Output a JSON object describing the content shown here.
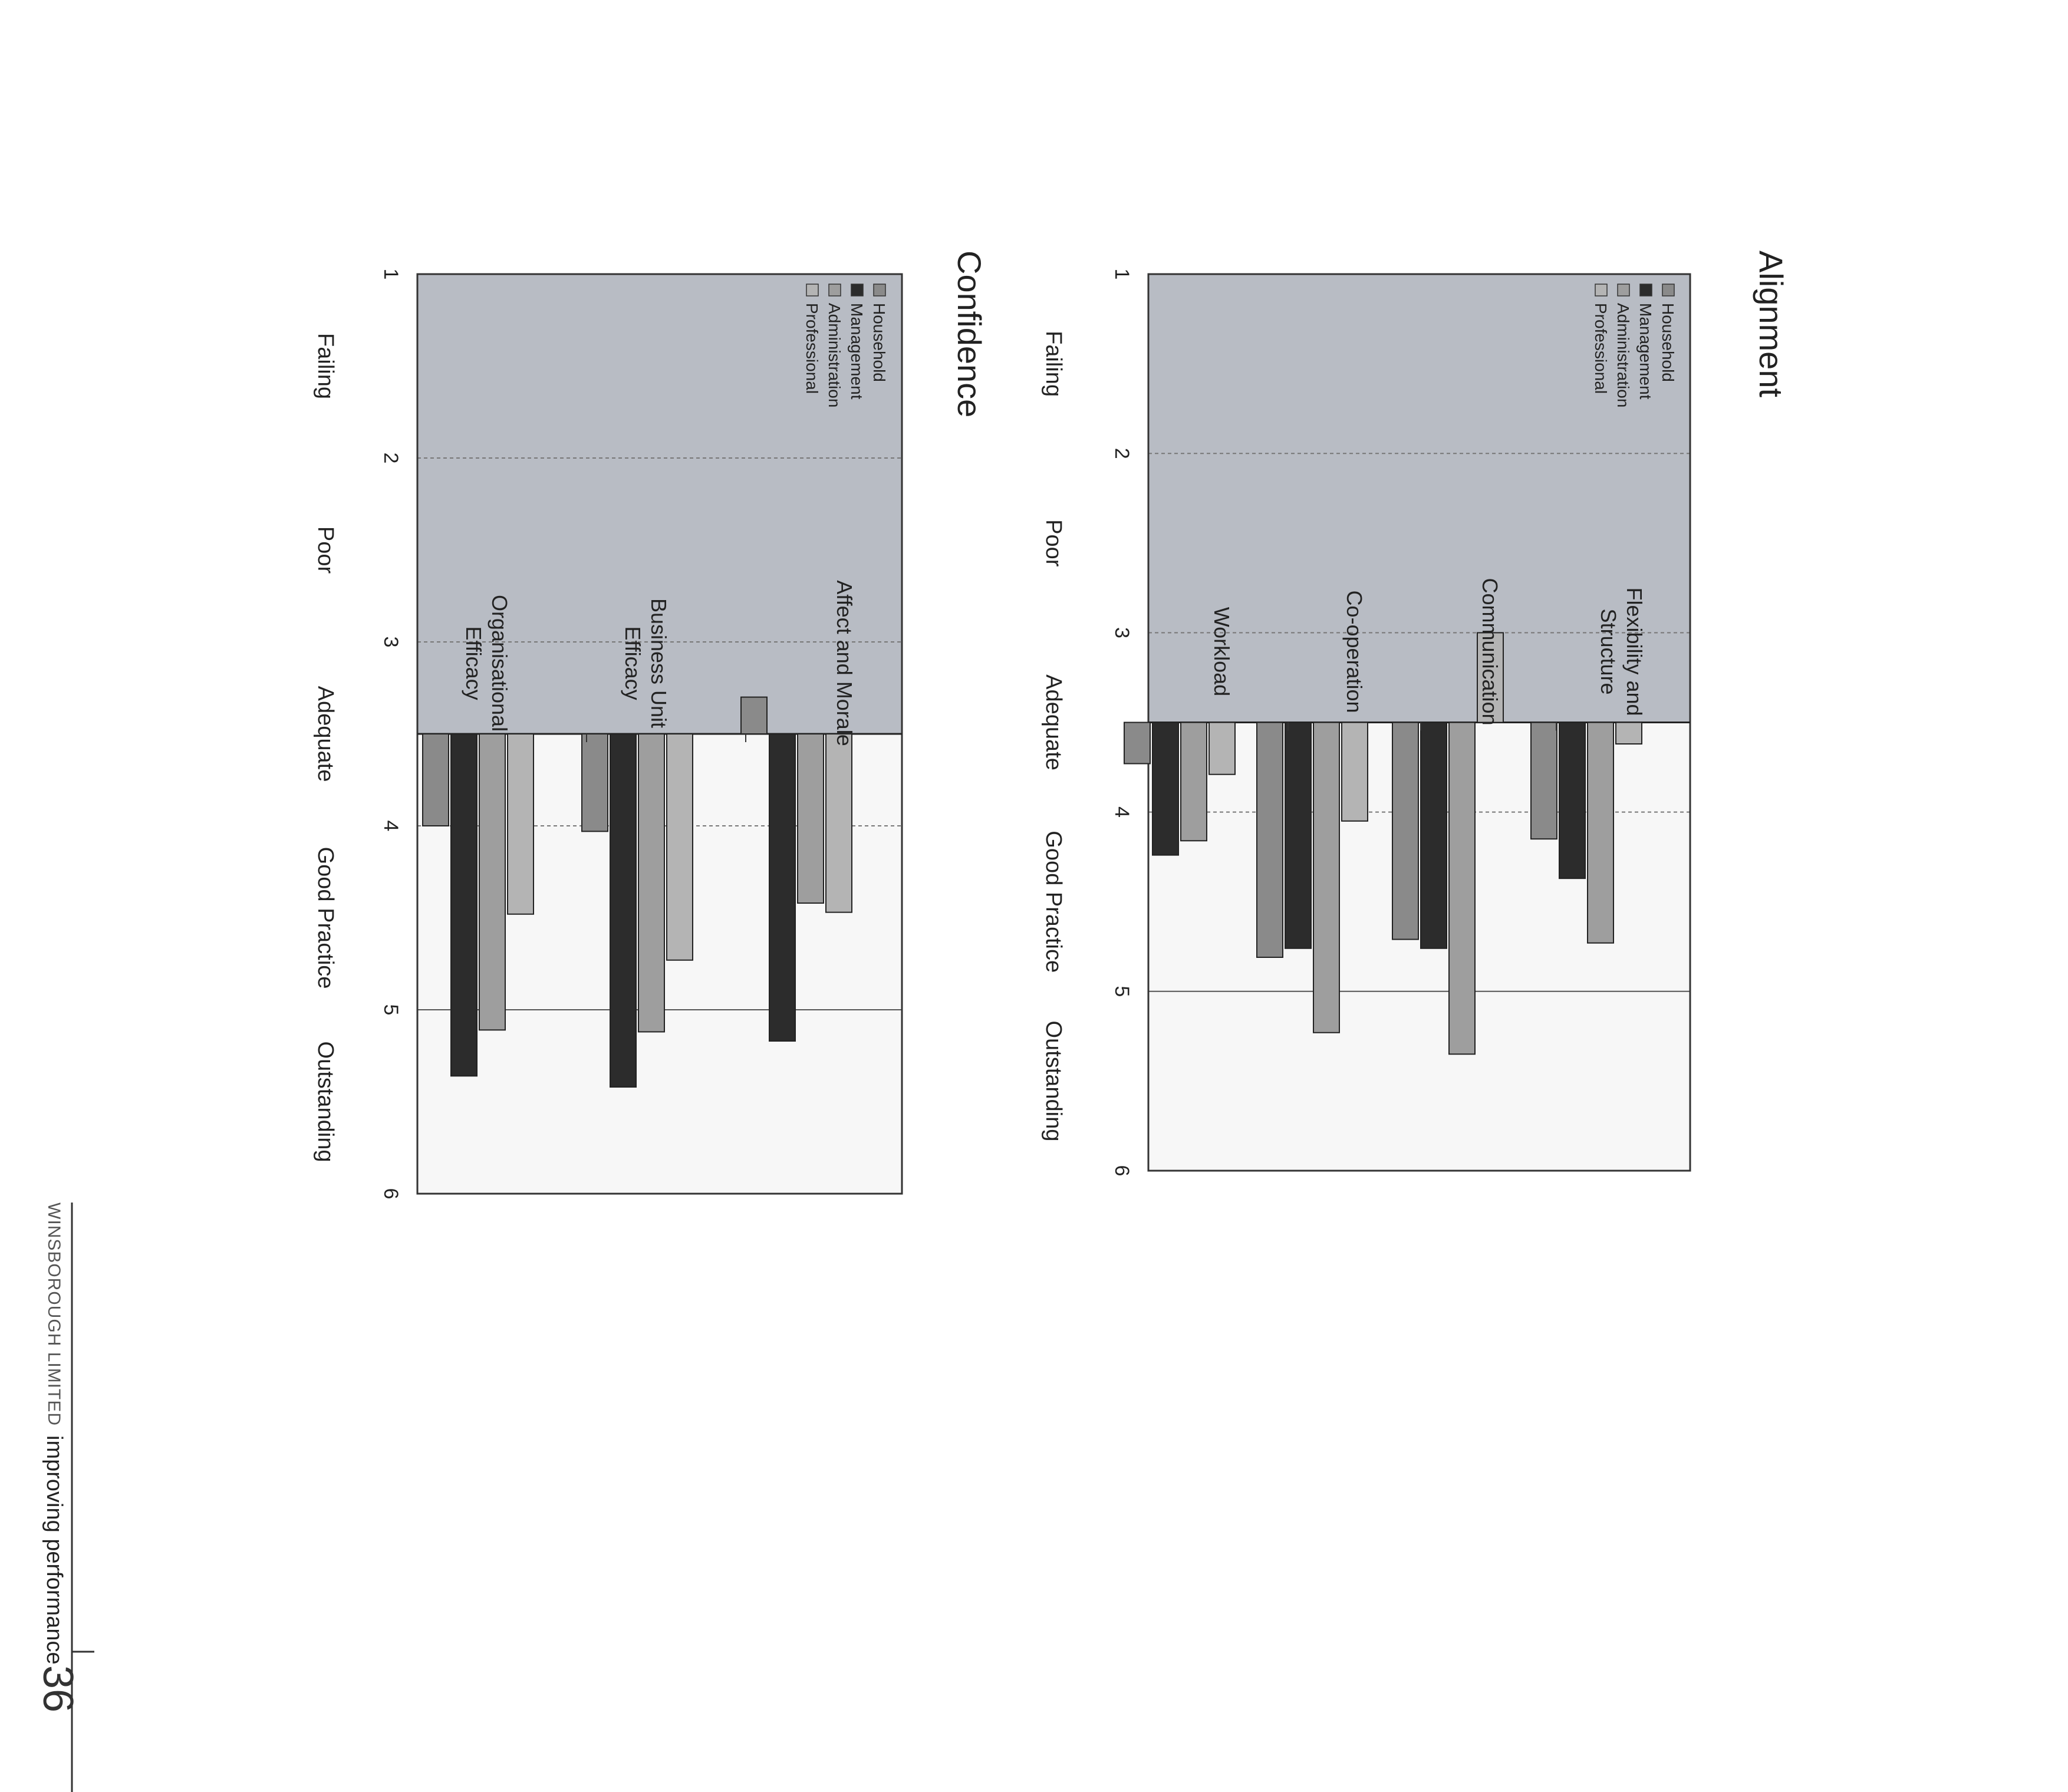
{
  "page": {
    "number": "36",
    "brand": "WINSBOROUGH LIMITED",
    "tagline": "improving performance"
  },
  "legend_colors": {
    "Household": "#8a8a8a",
    "Management": "#2c2c2c",
    "Administration": "#9e9e9e",
    "Professional": "#b4b4b4"
  },
  "bg_colors": {
    "upper": "#b8bcc4",
    "lower": "#f7f7f7"
  },
  "chart_data": [
    {
      "type": "bar",
      "orientation": "horizontal",
      "title": "Alignment",
      "categories": [
        "Flexibility and Structure",
        "Communication",
        "Co-operation",
        "Workload"
      ],
      "category_lines": [
        [
          "Flexibility and",
          "Structure"
        ],
        [
          "Communication"
        ],
        [
          "Co-operation"
        ],
        [
          "Workload"
        ]
      ],
      "series": [
        {
          "name": "Household",
          "values": [
            4.15,
            4.71,
            4.81,
            3.73
          ]
        },
        {
          "name": "Management",
          "values": [
            4.37,
            4.76,
            4.76,
            4.24
          ]
        },
        {
          "name": "Administration",
          "values": [
            4.73,
            5.35,
            5.23,
            4.16
          ]
        },
        {
          "name": "Professional",
          "values": [
            3.62,
            3.0,
            4.05,
            3.79
          ]
        }
      ],
      "baseline": 3.5,
      "xlim": [
        1,
        6
      ],
      "ticks": [
        "1",
        "2",
        "3",
        "4",
        "5",
        "6"
      ],
      "scale_labels": [
        "Failing",
        "Poor",
        "Adequate",
        "Good Practice",
        "Outstanding"
      ],
      "legend": [
        "Household",
        "Management",
        "Administration",
        "Professional"
      ],
      "legend_position": "top-left"
    },
    {
      "type": "bar",
      "orientation": "horizontal",
      "title": "Confidence",
      "categories": [
        "Affect and Morale",
        "Business Unit Efficacy",
        "Organisational Efficacy"
      ],
      "category_lines": [
        [
          "Affect and Morale"
        ],
        [
          "Business Unit",
          "Efficacy"
        ],
        [
          "Organisational",
          "Efficacy"
        ]
      ],
      "series": [
        {
          "name": "Household",
          "values": [
            3.3,
            4.03,
            4.0
          ]
        },
        {
          "name": "Management",
          "values": [
            5.17,
            5.42,
            5.36
          ]
        },
        {
          "name": "Administration",
          "values": [
            4.42,
            5.12,
            5.11
          ]
        },
        {
          "name": "Professional",
          "values": [
            4.47,
            4.73,
            4.48
          ]
        }
      ],
      "baseline": 3.5,
      "xlim": [
        1,
        6
      ],
      "ticks": [
        "1",
        "2",
        "3",
        "4",
        "5",
        "6"
      ],
      "scale_labels": [
        "Failing",
        "Poor",
        "Adequate",
        "Good Practice",
        "Outstanding"
      ],
      "legend": [
        "Household",
        "Management",
        "Administration",
        "Professional"
      ],
      "legend_position": "top-left"
    }
  ]
}
